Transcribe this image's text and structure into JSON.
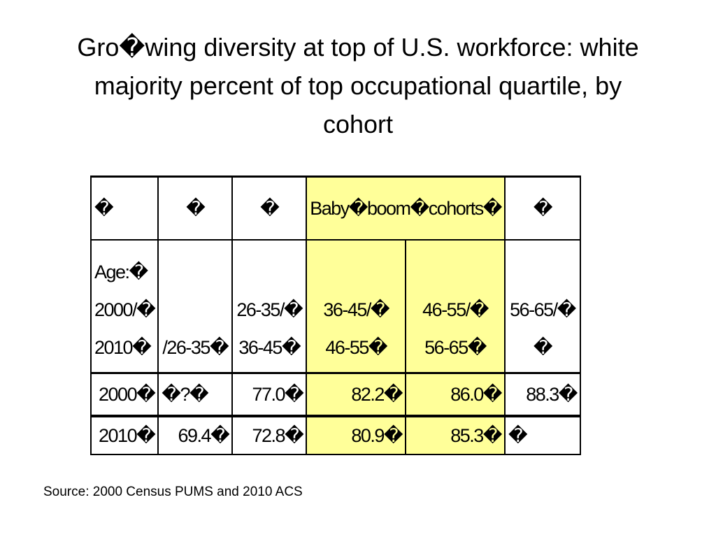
{
  "slide": {
    "title_lines": [
      "Gro�wing diversity at top of U.S. workforce: white",
      "majority percent of top occupational quartile, by",
      "cohort"
    ],
    "source": "Source:  2000 Census PUMS and 2010 ACS"
  },
  "table": {
    "header_row": [
      "�",
      "�",
      "�",
      "Baby�boom�cohorts�",
      "�"
    ],
    "age_row": {
      "c0": [
        "Age:�",
        "2000/�",
        "2010�"
      ],
      "c1": [
        "/26-35�"
      ],
      "c2": [
        "26-35/�",
        "36-45�"
      ],
      "c3": [
        "36-45/�",
        "46-55�"
      ],
      "c4": [
        "46-55/�",
        "56-65�"
      ],
      "c5": [
        "56-65/�",
        "�"
      ]
    },
    "row_2000": [
      "2000�",
      "�?�",
      "77.0�",
      "82.2�",
      "86.0�",
      "88.3�"
    ],
    "row_2010": [
      "2010�",
      "69.4�",
      "72.8�",
      "80.9�",
      "85.3�",
      "�"
    ]
  },
  "colors": {
    "highlight": "#ffff99",
    "border": "#000000"
  }
}
